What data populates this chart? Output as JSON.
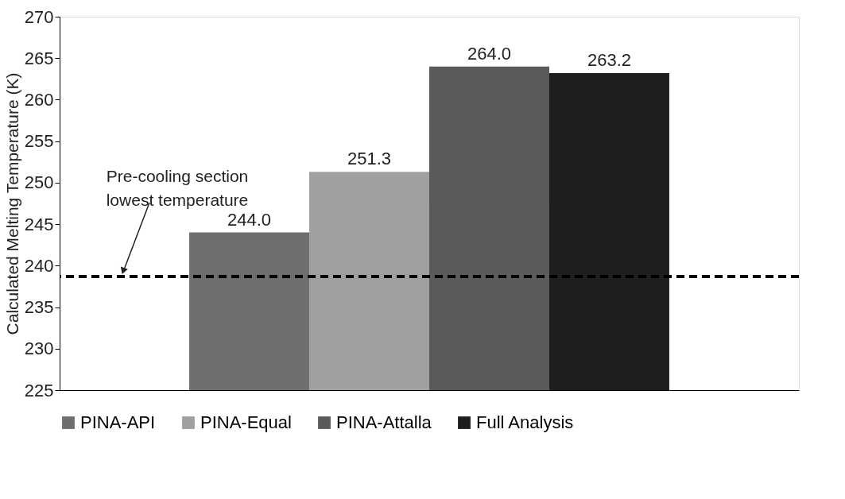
{
  "chart_data": {
    "type": "bar",
    "ylabel": "Calculated Melting Temperature (K)",
    "categories": [
      null
    ],
    "series": [
      {
        "name": "PINA-API",
        "color": "#6e6e6e",
        "values": [
          244
        ],
        "value_labels": [
          "244.0"
        ]
      },
      {
        "name": "PINA-Equal",
        "color": "#a0a0a0",
        "values": [
          251.3
        ],
        "value_labels": [
          "251.3"
        ]
      },
      {
        "name": "PINA-Attalla",
        "color": "#5a5a5a",
        "values": [
          264
        ],
        "value_labels": [
          "264.0"
        ]
      },
      {
        "name": "Full Analysis",
        "color": "#1e1e1e",
        "values": [
          263.2
        ],
        "value_labels": [
          "263.2"
        ]
      }
    ],
    "ylim": [
      225,
      270
    ],
    "yticks": [
      225,
      230,
      235,
      240,
      245,
      250,
      255,
      260,
      265,
      270
    ],
    "ref_lines": [
      {
        "axis": "y",
        "value": 238.7,
        "label": "Pre-cooling section\nlowest temperature",
        "color": "#000000",
        "line_style": "dashed"
      }
    ],
    "grid": false,
    "legend": "bottom"
  }
}
